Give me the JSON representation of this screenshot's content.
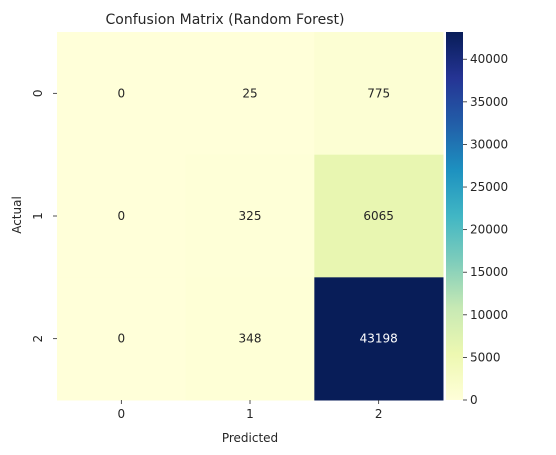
{
  "chart_data": {
    "type": "heatmap",
    "title": "Confusion Matrix (Random Forest)",
    "xlabel": "Predicted",
    "ylabel": "Actual",
    "x_categories": [
      "0",
      "1",
      "2"
    ],
    "y_categories": [
      "0",
      "1",
      "2"
    ],
    "values": [
      [
        0,
        25,
        775
      ],
      [
        0,
        325,
        6065
      ],
      [
        0,
        348,
        43198
      ]
    ],
    "colorbar": {
      "colormap": "YlGnBu",
      "range": [
        0,
        43198
      ],
      "ticks": [
        0,
        5000,
        10000,
        15000,
        20000,
        25000,
        30000,
        35000,
        40000
      ]
    }
  }
}
